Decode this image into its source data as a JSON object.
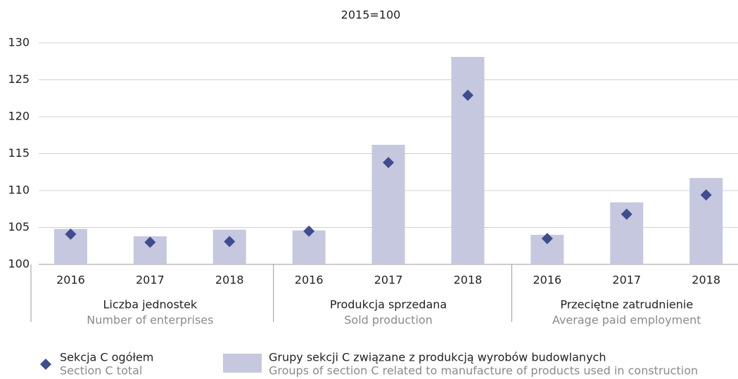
{
  "chart_data": {
    "type": "bar",
    "title": "2015=100",
    "categories": [
      "2016",
      "2017",
      "2018",
      "2016",
      "2017",
      "2018",
      "2016",
      "2017",
      "2018"
    ],
    "groups": [
      {
        "label": "Liczba jednostek",
        "label_en": "Number of enterprises"
      },
      {
        "label": "Produkcja sprzedana",
        "label_en": "Sold production"
      },
      {
        "label": "Przeciętne zatrudnienie",
        "label_en": "Average paid employment"
      }
    ],
    "series": [
      {
        "name": "Grupy sekcji C związane z produkcją wyrobów budowlanych",
        "name_en": "Groups of section C related to manufacture of products used in construction",
        "type": "bar",
        "color": "#c5c8de",
        "values": [
          104.8,
          103.8,
          104.7,
          104.6,
          116.2,
          128.1,
          104.0,
          108.4,
          111.7
        ]
      },
      {
        "name": "Sekcja C ogółem",
        "name_en": "Section C total",
        "type": "diamond",
        "color": "#3f4d8f",
        "values": [
          104.1,
          103.0,
          103.1,
          104.5,
          113.8,
          122.9,
          103.5,
          106.8,
          109.4
        ]
      }
    ],
    "ylim": [
      100,
      130
    ],
    "yticks": [
      100,
      105,
      110,
      115,
      120,
      125,
      130
    ],
    "grid": true
  }
}
